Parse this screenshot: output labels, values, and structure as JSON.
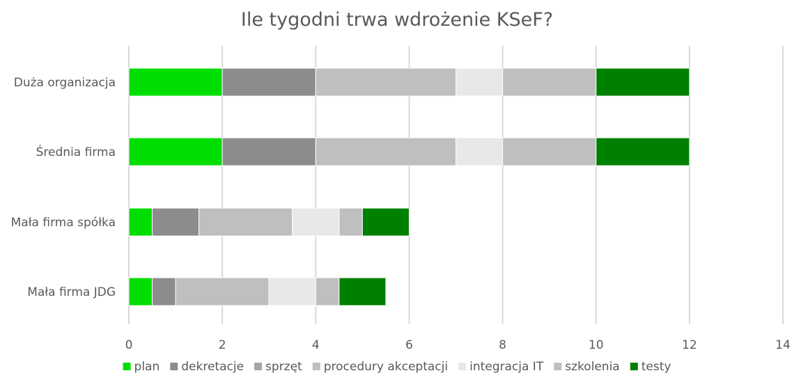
{
  "chart_data": {
    "type": "bar",
    "orientation": "horizontal",
    "stacked": true,
    "title": "Ile tygodni trwa wdrożenie KSeF?",
    "xlabel": "",
    "ylabel": "",
    "xlim": [
      0,
      14
    ],
    "x_ticks": [
      0,
      2,
      4,
      6,
      8,
      10,
      12,
      14
    ],
    "grid": "vertical",
    "legend_position": "bottom",
    "categories": [
      "Duża organizacja",
      "Średnia firma",
      "Mała firma spółka",
      "Mała firma JDG"
    ],
    "series": [
      {
        "name": "plan",
        "color": "#00dd00",
        "values": [
          2,
          2,
          0.5,
          0.5
        ]
      },
      {
        "name": "dekretacje",
        "color": "#8c8c8c",
        "values": [
          2,
          2,
          1,
          0.5
        ]
      },
      {
        "name": "sprzęt",
        "color": "#a6a6a6",
        "values": [
          0,
          0,
          0,
          0
        ]
      },
      {
        "name": "procedury akceptacji",
        "color": "#bfbfbf",
        "values": [
          3,
          3,
          2,
          2
        ]
      },
      {
        "name": "integracja IT",
        "color": "#e8e8e8",
        "values": [
          1,
          1,
          1,
          1
        ]
      },
      {
        "name": "szkolenia",
        "color": "#bfbfbf",
        "values": [
          2,
          2,
          0.5,
          0.5
        ]
      },
      {
        "name": "testy",
        "color": "#008000",
        "values": [
          2,
          2,
          1,
          1
        ]
      }
    ]
  }
}
